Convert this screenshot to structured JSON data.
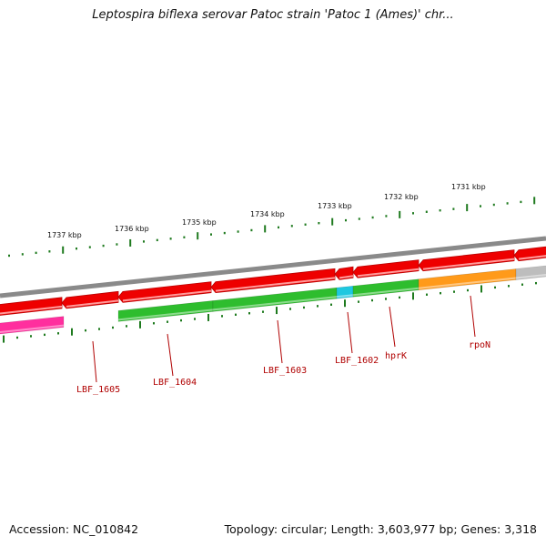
{
  "title": "Leptospira biflexa serovar Patoc strain 'Patoc 1 (Ames)' chr...",
  "footer": {
    "accession": "Accession: NC_010842",
    "summary": "Topology: circular; Length: 3,603,977 bp; Genes: 3,318"
  },
  "colors": {
    "backbone": "#8a8a8a",
    "forward_cds": "#ee0000",
    "reverse_cds": "#2ebd2e",
    "rna": "#ff2f9e",
    "highlight_a": "#1ec8e0",
    "highlight_b": "#ff9a1a",
    "unknown": "#bdbdbd",
    "tick": "#1e7a1e",
    "label": "#b00000"
  },
  "scale": {
    "unit_labels": [
      "1737 kbp",
      "1736 kbp",
      "1735 kbp",
      "1734 kbp",
      "1733 kbp",
      "1732 kbp",
      "1731 kbp"
    ]
  },
  "gene_labels": [
    "LBF_1605",
    "LBF_1604",
    "LBF_1603",
    "LBF_1602",
    "hprK",
    "rpoN"
  ]
}
